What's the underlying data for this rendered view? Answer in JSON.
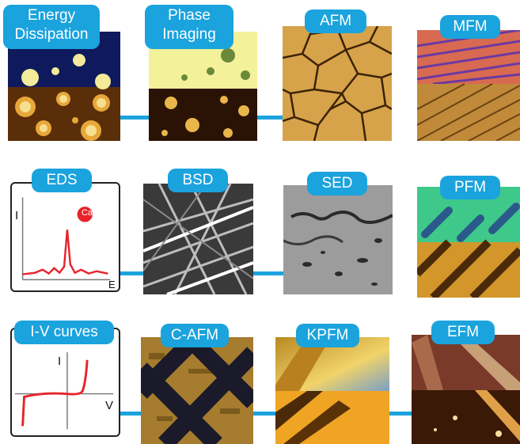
{
  "tiles": {
    "energy": {
      "label_line1": "Energy",
      "label_line2": "Dissipation"
    },
    "phase": {
      "label_line1": "Phase",
      "label_line2": "Imaging"
    },
    "afm": {
      "label": "AFM"
    },
    "mfm": {
      "label": "MFM"
    },
    "eds": {
      "label": "EDS",
      "y_axis": "I",
      "x_axis": "E",
      "peak_label": "Ca"
    },
    "bsd": {
      "label": "BSD"
    },
    "sed": {
      "label": "SED"
    },
    "pfm": {
      "label": "PFM"
    },
    "iv": {
      "label": "I-V curves",
      "y_axis": "I",
      "x_axis": "V"
    },
    "cafm": {
      "label": "C-AFM"
    },
    "kpfm": {
      "label": "KPFM"
    },
    "efm": {
      "label": "EFM"
    }
  },
  "colors": {
    "accent": "#1aa3dd",
    "curve": "#e8232a"
  }
}
